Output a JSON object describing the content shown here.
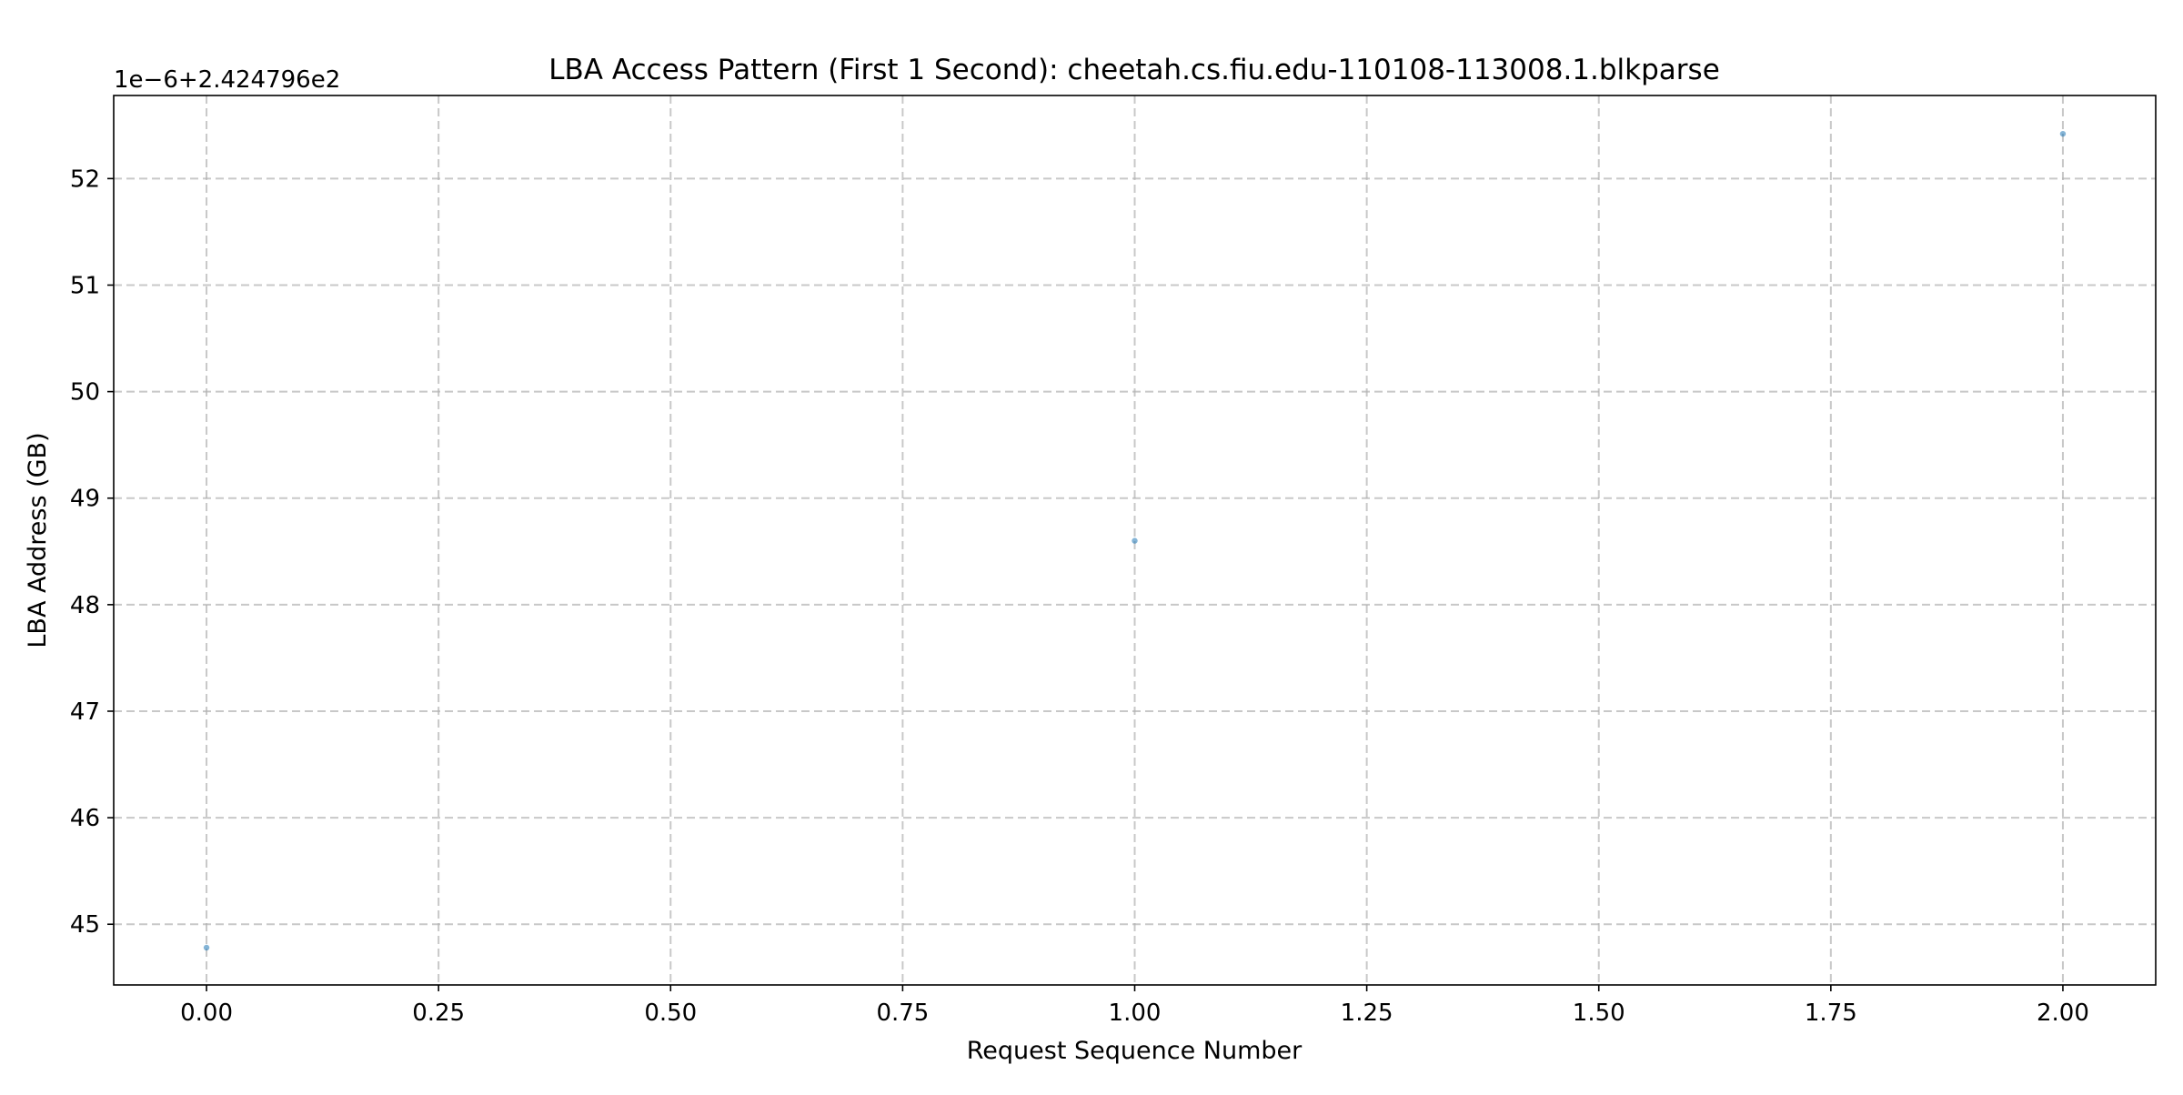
{
  "chart_data": {
    "type": "scatter",
    "title": "LBA Access Pattern (First 1 Second): cheetah.cs.fiu.edu-110108-113008.1.blkparse",
    "xlabel": "Request Sequence Number",
    "ylabel": "LBA Address (GB)",
    "y_offset_label": "1e−6+2.424796e2",
    "x": [
      0,
      1,
      2
    ],
    "y": [
      44.78,
      48.6,
      52.42
    ],
    "xlim": [
      -0.1,
      2.1
    ],
    "ylim": [
      44.43,
      52.78
    ],
    "x_ticks": [
      0.0,
      0.25,
      0.5,
      0.75,
      1.0,
      1.25,
      1.5,
      1.75,
      2.0
    ],
    "x_tick_labels": [
      "0.00",
      "0.25",
      "0.50",
      "0.75",
      "1.00",
      "1.25",
      "1.50",
      "1.75",
      "2.00"
    ],
    "y_ticks": [
      45,
      46,
      47,
      48,
      49,
      50,
      51,
      52
    ],
    "y_tick_labels": [
      "45",
      "46",
      "47",
      "48",
      "49",
      "50",
      "51",
      "52"
    ],
    "grid": true,
    "marker_color": "#1f77b4"
  }
}
